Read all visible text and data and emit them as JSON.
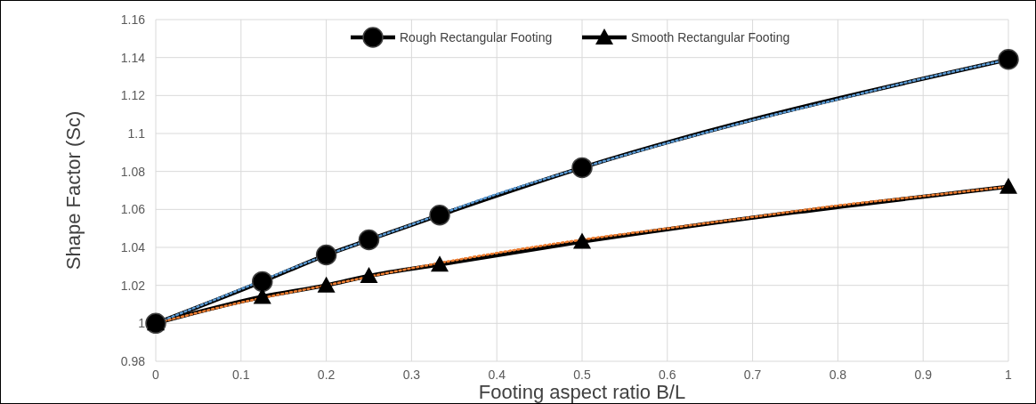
{
  "chart_data": {
    "type": "line",
    "xlabel": "Footing aspect ratio B/L",
    "ylabel": "Shape Factor (Sc)",
    "xlim": [
      0,
      1
    ],
    "ylim": [
      0.98,
      1.16
    ],
    "xticks": [
      0,
      0.1,
      0.2,
      0.3,
      0.4,
      0.5,
      0.6,
      0.7,
      0.8,
      0.9,
      1
    ],
    "yticks": [
      {
        "value": 0.98,
        "label": "0.98"
      },
      {
        "value": 1,
        "label": "1"
      },
      {
        "value": 1.02,
        "label": "1.02"
      },
      {
        "value": 1.04,
        "label": "1.04"
      },
      {
        "value": 1.06,
        "label": "1.06"
      },
      {
        "value": 1.08,
        "label": "1.08"
      },
      {
        "value": 1.1,
        "label": "1.1"
      },
      {
        "value": 1.12,
        "label": "1.12"
      },
      {
        "value": 1.14,
        "label": "1.14"
      },
      {
        "value": 1.16,
        "label": "1.16"
      }
    ],
    "grid": true,
    "legend": "top",
    "series": [
      {
        "name": "Rough Rectangular Footing",
        "color": "#000000",
        "marker": "circle",
        "line_style": "solid",
        "x": [
          0,
          0.125,
          0.2,
          0.25,
          0.333,
          0.5,
          1
        ],
        "values": [
          1.0,
          1.022,
          1.036,
          1.044,
          1.057,
          1.082,
          1.139
        ]
      },
      {
        "name": "Smooth Rectangular Footing",
        "color": "#000000",
        "marker": "triangle",
        "line_style": "solid",
        "x": [
          0,
          0.125,
          0.2,
          0.25,
          0.333,
          0.5,
          1
        ],
        "values": [
          1.0,
          1.014,
          1.02,
          1.025,
          1.031,
          1.043,
          1.072
        ]
      },
      {
        "type": "line",
        "color": "#5b9bd5",
        "marker": "none",
        "line_style": "dotted",
        "x": [
          0,
          0.1,
          0.16,
          0.3,
          0.4,
          0.5,
          0.6,
          0.7,
          0.8,
          0.9,
          1
        ],
        "values": [
          1.0,
          1.018,
          1.029,
          1.052,
          1.068,
          1.082,
          1.095,
          1.107,
          1.118,
          1.129,
          1.139
        ]
      },
      {
        "type": "line",
        "color": "#ed7d31",
        "marker": "none",
        "line_style": "dotted",
        "x": [
          0,
          0.1,
          0.2,
          0.3,
          0.4,
          0.5,
          0.6,
          0.7,
          0.8,
          0.9,
          1
        ],
        "values": [
          1.0,
          1.011,
          1.02,
          1.029,
          1.037,
          1.044,
          1.05,
          1.056,
          1.062,
          1.067,
          1.072
        ]
      }
    ]
  }
}
